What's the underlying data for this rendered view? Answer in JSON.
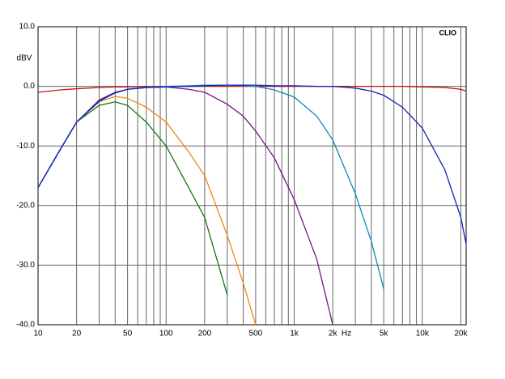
{
  "chart_data": {
    "type": "line",
    "y_label": "dBV",
    "x_label": "Hz",
    "watermark": "CLIO",
    "log_x": true,
    "grid": true,
    "xlim": [
      10,
      22000
    ],
    "ylim": [
      -40,
      10
    ],
    "yticks": [
      {
        "value": -40,
        "label": "-40.0"
      },
      {
        "value": -30,
        "label": "-30.0"
      },
      {
        "value": -20,
        "label": "-20.0"
      },
      {
        "value": -10,
        "label": "-10.0"
      },
      {
        "value": 0,
        "label": "0.0"
      },
      {
        "value": 10,
        "label": "10.0"
      }
    ],
    "xticks": [
      10,
      20,
      50,
      100,
      200,
      500,
      {
        "value": 1000,
        "label": "1k"
      },
      {
        "value": 2000,
        "label": "2k"
      },
      {
        "value": 5000,
        "label": "5k"
      },
      {
        "value": 10000,
        "label": "10k"
      },
      {
        "value": 20000,
        "label": "20k"
      }
    ],
    "xminor": [
      30,
      40,
      60,
      70,
      80,
      90,
      300,
      400,
      600,
      700,
      800,
      900,
      3000,
      4000,
      6000,
      7000,
      8000,
      9000
    ],
    "x": [
      10,
      15,
      20,
      30,
      40,
      50,
      70,
      100,
      150,
      200,
      300,
      400,
      500,
      700,
      1000,
      1500,
      2000,
      3000,
      4000,
      5000,
      7000,
      10000,
      15000,
      20000,
      22000
    ],
    "series": [
      {
        "color": "#cc1111",
        "values": [
          -1.0,
          -0.6,
          -0.4,
          -0.2,
          -0.1,
          -0.1,
          0,
          0,
          0,
          0,
          0,
          0,
          0,
          0,
          0,
          0,
          0,
          0,
          0,
          0,
          0,
          -0.1,
          -0.2,
          -0.5,
          -0.8
        ]
      },
      {
        "color": "#117711",
        "values": [
          -17,
          -10.5,
          -6,
          -3.2,
          -2.6,
          -3.2,
          -6,
          -10,
          -17,
          -22,
          -35,
          null,
          null,
          null,
          null,
          null,
          null,
          null,
          null,
          null,
          null,
          null,
          null,
          null,
          null
        ]
      },
      {
        "color": "#ee8811",
        "values": [
          -17,
          -10.5,
          -6,
          -2.6,
          -1.7,
          -2.0,
          -3.5,
          -6,
          -11,
          -15,
          -25,
          -33,
          -40,
          null,
          null,
          null,
          null,
          null,
          null,
          null,
          null,
          null,
          null,
          null,
          null
        ]
      },
      {
        "color": "#771188",
        "values": [
          -17,
          -10.5,
          -6,
          -2.3,
          -1.0,
          -0.5,
          -0.2,
          -0.1,
          -0.5,
          -1,
          -3,
          -5,
          -7.5,
          -12,
          -19,
          -29,
          -40,
          null,
          null,
          null,
          null,
          null,
          null,
          null,
          null
        ]
      },
      {
        "color": "#1188bb",
        "values": [
          -17,
          -10.5,
          -6,
          -2.5,
          -1.1,
          -0.5,
          -0.1,
          0,
          0.1,
          0.2,
          0.2,
          0.1,
          0,
          -0.6,
          -1.8,
          -5,
          -9,
          -18,
          -26,
          -34,
          null,
          null,
          null,
          null,
          null
        ]
      },
      {
        "color": "#1122bb",
        "values": [
          -17,
          -10.5,
          -6,
          -2.5,
          -1.1,
          -0.5,
          -0.2,
          -0.1,
          0,
          0.1,
          0.2,
          0.2,
          0.2,
          0.1,
          0.1,
          0,
          0,
          -0.3,
          -0.8,
          -1.5,
          -3.5,
          -7,
          -14,
          -22,
          -26.5
        ]
      }
    ]
  }
}
